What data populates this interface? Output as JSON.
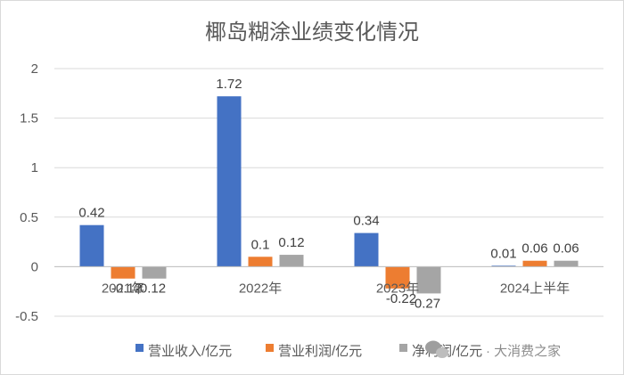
{
  "chart_data": {
    "type": "bar",
    "title": "椰岛糊涂业绩变化情况",
    "categories": [
      "2021年",
      "2022年",
      "2023年",
      "2024上半年"
    ],
    "series": [
      {
        "name": "营业收入/亿元",
        "values": [
          0.42,
          1.72,
          0.34,
          0.01
        ],
        "color": "#4472c4"
      },
      {
        "name": "营业利润/亿元",
        "values": [
          -0.12,
          0.1,
          -0.22,
          0.06
        ],
        "color": "#ed7d31"
      },
      {
        "name": "净利润/亿元",
        "values": [
          -0.12,
          0.12,
          -0.27,
          0.06
        ],
        "color": "#a5a5a5"
      }
    ],
    "ylim": [
      -0.5,
      2
    ],
    "yticks": [
      -0.5,
      0,
      0.5,
      1,
      1.5,
      2
    ],
    "ytick_labels": [
      "-0.5",
      "0",
      "0.5",
      "1",
      "1.5",
      "2"
    ],
    "grid": true,
    "legend": "bottom"
  },
  "watermark": {
    "text": "· 大消费之家",
    "icon": "wechat-icon"
  }
}
